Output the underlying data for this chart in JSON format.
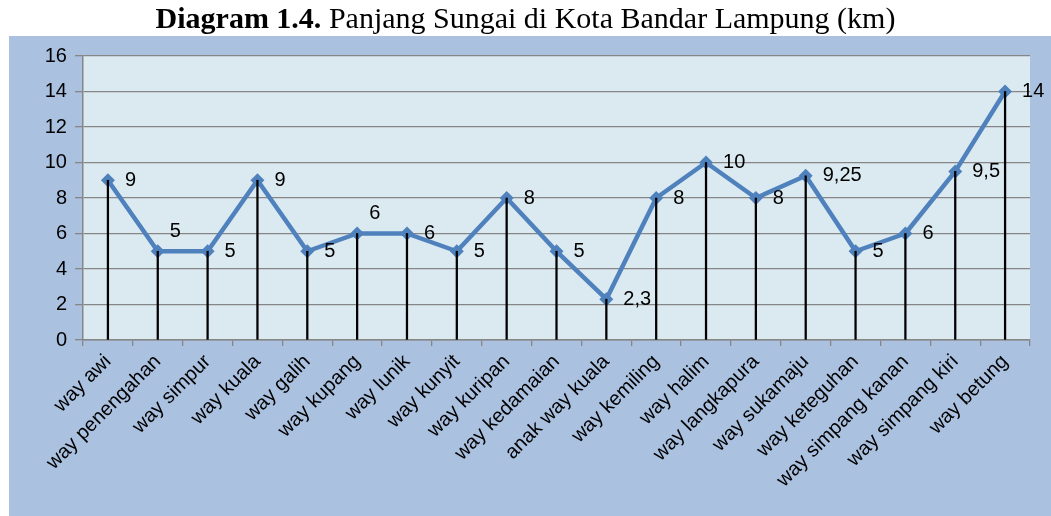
{
  "chart_data": {
    "type": "line",
    "title": "Diagram 1.4.",
    "subtitle": "Panjang Sungai di Kota Bandar Lampung (km)",
    "categories": [
      "way awi",
      "way penengahan",
      "way simpur",
      "way kuala",
      "way galih",
      "way kupang",
      "way lunik",
      "way kunyit",
      "way kuripan",
      "way kedamaian",
      "anak way kuala",
      "way kemiling",
      "way halim",
      "way langkapura",
      "way sukamaju",
      "way keteguhan",
      "way simpang kanan",
      "way simpang kiri",
      "way betung"
    ],
    "series": [
      {
        "color": "#4f81bd",
        "values": [
          9,
          5,
          5,
          9,
          5,
          6,
          6,
          5,
          8,
          5,
          2.3,
          8,
          10,
          8,
          9.25,
          5,
          6,
          9.5,
          14
        ],
        "value_labels": [
          "9",
          "5",
          "5",
          "9",
          "5",
          "6",
          "6",
          "5",
          "8",
          "5",
          "2,3",
          "8",
          "10",
          "8",
          "9,25",
          "5",
          "6",
          "9,5",
          "14"
        ]
      },
      {
        "type": "bar",
        "color": "#000000",
        "values": [
          9,
          5,
          5,
          9,
          5,
          6,
          6,
          5,
          8,
          5,
          2.3,
          8,
          10,
          8,
          9.25,
          5,
          6,
          9.5,
          14
        ]
      }
    ],
    "ylim": [
      0,
      16
    ],
    "yticks": [
      0,
      2,
      4,
      6,
      8,
      10,
      12,
      14,
      16
    ],
    "grid": "y",
    "marker": "diamond"
  }
}
